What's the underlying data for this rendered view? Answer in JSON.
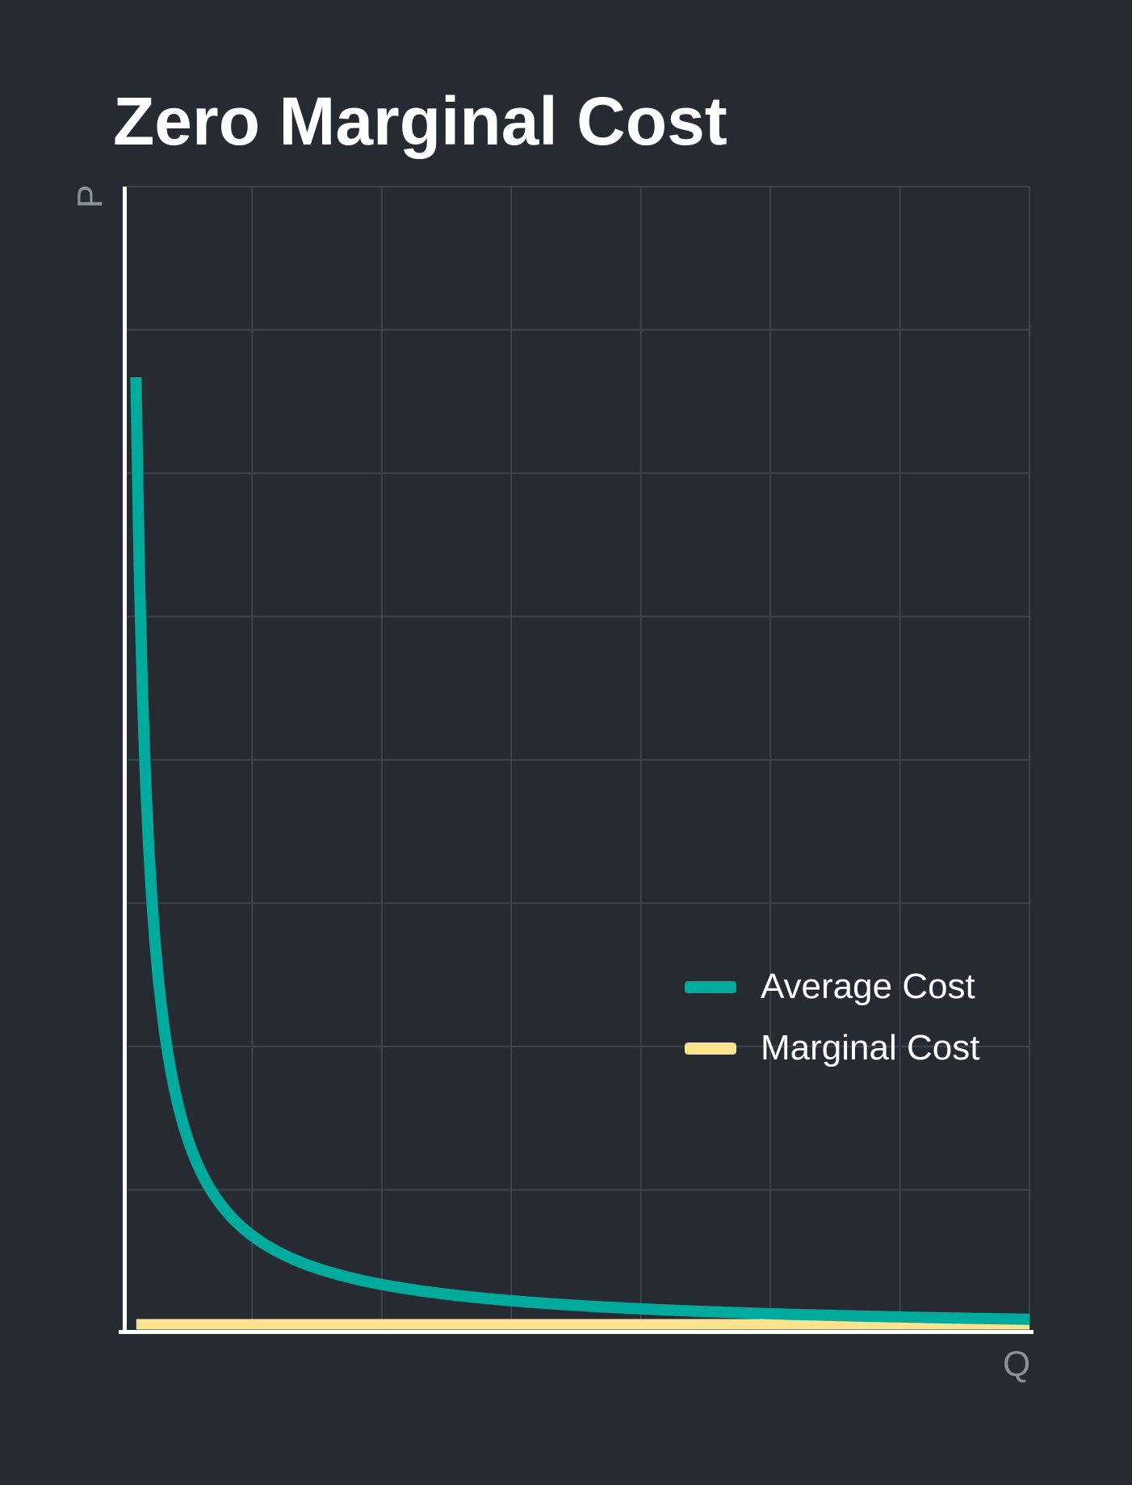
{
  "title": "Zero Marginal Cost",
  "colors": {
    "background": "#262B33",
    "grid": "#3E434E",
    "axis": "#FFFFFF",
    "label": "#8A9099",
    "title": "#FFFFFF",
    "average_cost": "#00AB9E",
    "marginal_cost": "#FBE48E"
  },
  "legend": {
    "position": "center-right",
    "items": [
      {
        "label": "Average Cost",
        "color": "#00AB9E"
      },
      {
        "label": "Marginal Cost",
        "color": "#FBE48E"
      }
    ]
  },
  "chart_data": {
    "type": "line",
    "title": "Zero Marginal Cost",
    "xlabel": "Q",
    "ylabel": "P",
    "xlim": [
      0,
      7
    ],
    "ylim": [
      0,
      8
    ],
    "grid": true,
    "x_gridline_count": 7,
    "y_gridline_count": 8,
    "axis_ticks_labeled": false,
    "legend_position": "center-right",
    "series": [
      {
        "name": "Average Cost",
        "type": "curve",
        "formula": "P = k / Q",
        "k": 0.68,
        "p_max": 6.67,
        "q_end": 7,
        "color": "#00AB9E",
        "stroke_width": 14,
        "sample_points": [
          [
            0.102,
            6.67
          ],
          [
            0.25,
            2.72
          ],
          [
            0.5,
            1.36
          ],
          [
            1,
            0.68
          ],
          [
            1.5,
            0.45
          ],
          [
            2,
            0.34
          ],
          [
            3,
            0.23
          ],
          [
            4,
            0.17
          ],
          [
            5,
            0.14
          ],
          [
            6,
            0.11
          ],
          [
            7,
            0.1
          ]
        ]
      },
      {
        "name": "Marginal Cost",
        "type": "hline",
        "formula": "P = 0.06",
        "value": 0.062,
        "q_start": 0.105,
        "q_end": 7,
        "color": "#FBE48E",
        "stroke_width": 13
      }
    ]
  }
}
